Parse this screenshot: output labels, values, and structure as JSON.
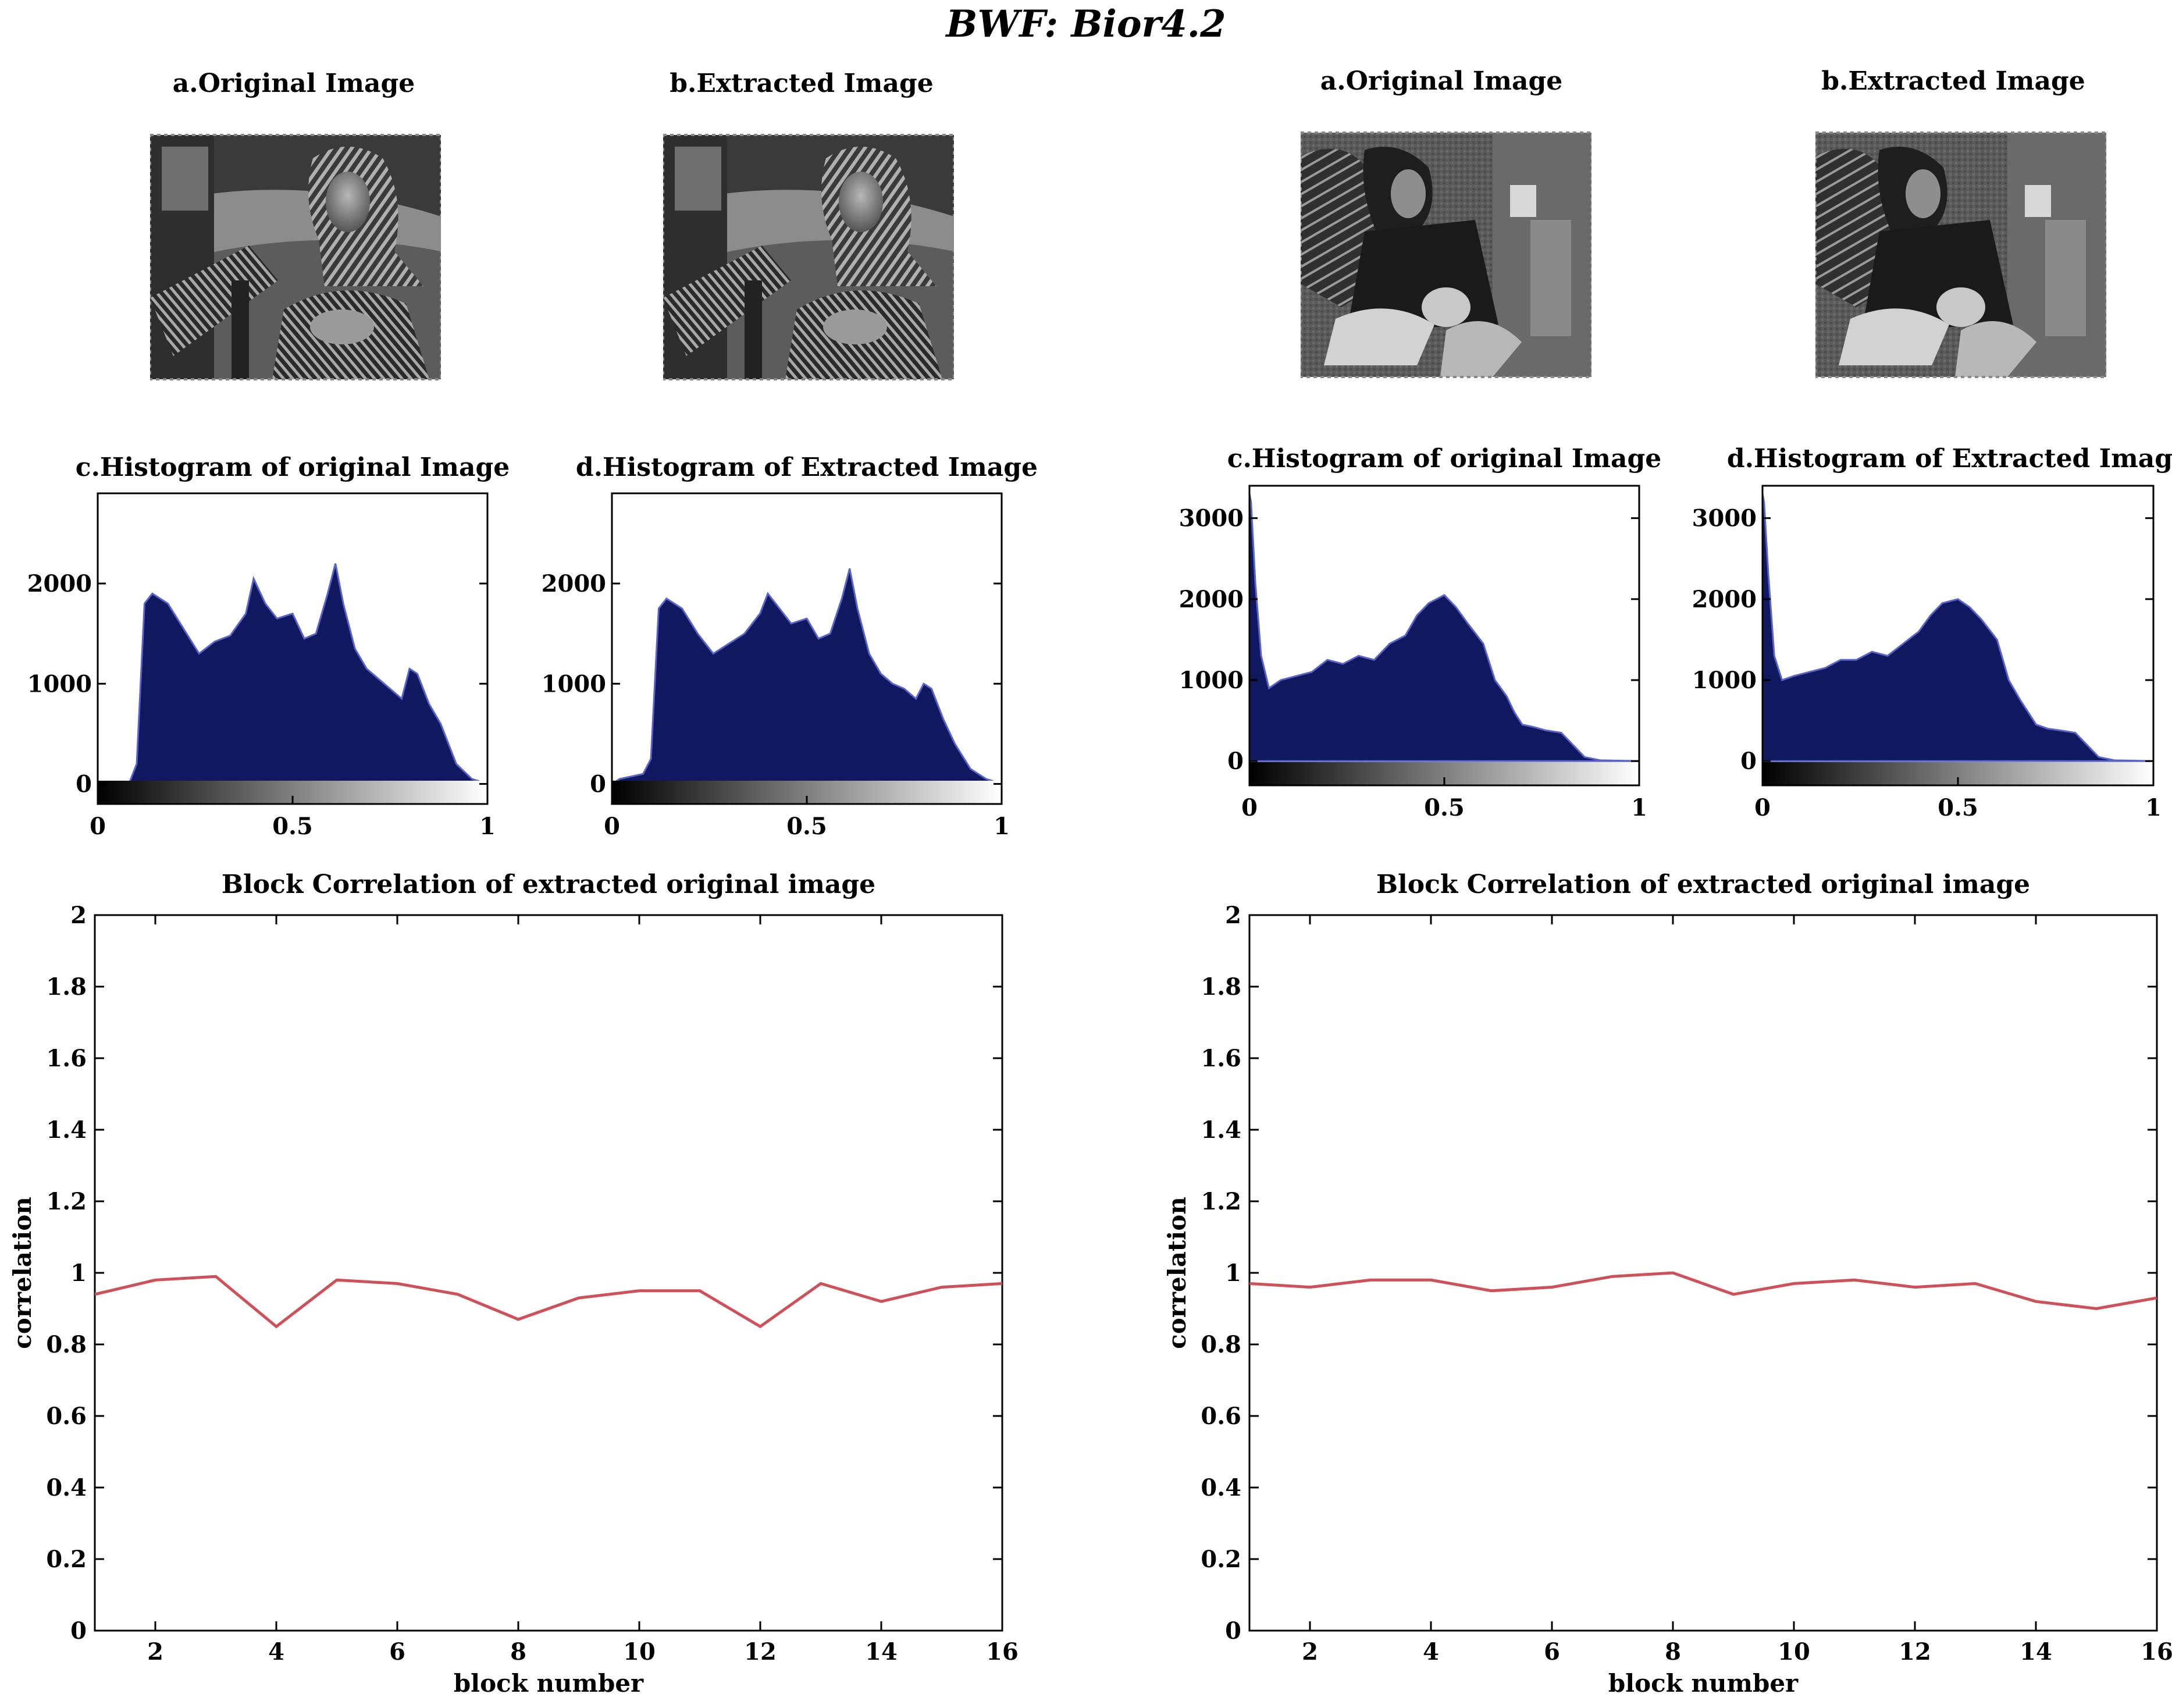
{
  "figure": {
    "title": "BWF: Bior4.2"
  },
  "colors": {
    "histogram_fill": "#101860",
    "histogram_edge": "#5a64c8",
    "correlation_line": "#d0505a",
    "axes": "#000000"
  },
  "panels": [
    {
      "images": [
        {
          "title": "a.Original Image",
          "subject": "woman-with-headscarf"
        },
        {
          "title": "b.Extracted Image",
          "subject": "woman-with-headscarf"
        }
      ]
    },
    {
      "images": [
        {
          "title": "a.Original Image",
          "subject": "man-with-feather-headdress"
        },
        {
          "title": "b.Extracted Image",
          "subject": "man-with-feather-headdress"
        }
      ]
    }
  ],
  "chart_data": [
    {
      "type": "area",
      "panel": 0,
      "role": "histogram",
      "title": "c.Histogram of original Image",
      "xlim": [
        0,
        1
      ],
      "ylim": [
        -200,
        2900
      ],
      "xticks": [
        "0",
        "0.5",
        "1"
      ],
      "yticks": [
        "0",
        "1000",
        "2000"
      ],
      "ytick_values": [
        0,
        1000,
        2000
      ],
      "x": [
        0,
        0.08,
        0.1,
        0.12,
        0.14,
        0.18,
        0.22,
        0.26,
        0.3,
        0.34,
        0.38,
        0.4,
        0.43,
        0.46,
        0.5,
        0.53,
        0.56,
        0.59,
        0.61,
        0.63,
        0.66,
        0.69,
        0.72,
        0.75,
        0.78,
        0.8,
        0.82,
        0.85,
        0.88,
        0.92,
        0.96,
        1.0
      ],
      "values": [
        0,
        0,
        200,
        1800,
        1900,
        1800,
        1550,
        1300,
        1420,
        1480,
        1700,
        2050,
        1800,
        1650,
        1700,
        1450,
        1500,
        1900,
        2200,
        1800,
        1350,
        1150,
        1050,
        950,
        850,
        1150,
        1100,
        800,
        600,
        200,
        50,
        0
      ]
    },
    {
      "type": "area",
      "panel": 0,
      "role": "histogram",
      "title": "d.Histogram of Extracted Image",
      "xlim": [
        0,
        1
      ],
      "ylim": [
        -200,
        2900
      ],
      "xticks": [
        "0",
        "0.5",
        "1"
      ],
      "yticks": [
        "0",
        "1000",
        "2000"
      ],
      "ytick_values": [
        0,
        1000,
        2000
      ],
      "x": [
        0,
        0.02,
        0.08,
        0.1,
        0.12,
        0.14,
        0.18,
        0.22,
        0.26,
        0.3,
        0.34,
        0.38,
        0.4,
        0.43,
        0.46,
        0.5,
        0.53,
        0.56,
        0.59,
        0.61,
        0.63,
        0.66,
        0.69,
        0.72,
        0.75,
        0.78,
        0.8,
        0.82,
        0.85,
        0.88,
        0.92,
        0.96,
        1.0
      ],
      "values": [
        0,
        50,
        100,
        250,
        1750,
        1850,
        1750,
        1500,
        1300,
        1400,
        1500,
        1700,
        1900,
        1750,
        1600,
        1650,
        1450,
        1500,
        1850,
        2150,
        1750,
        1300,
        1100,
        1000,
        950,
        850,
        1000,
        950,
        650,
        400,
        150,
        50,
        0
      ]
    },
    {
      "type": "area",
      "panel": 1,
      "role": "histogram",
      "title": "c.Histogram of original Image",
      "xlim": [
        0,
        1
      ],
      "ylim": [
        -300,
        3400
      ],
      "xticks": [
        "0",
        "0.5",
        "1"
      ],
      "yticks": [
        "0",
        "1000",
        "2000",
        "3000"
      ],
      "ytick_values": [
        0,
        1000,
        2000,
        3000
      ],
      "x": [
        0,
        0.004,
        0.015,
        0.03,
        0.05,
        0.08,
        0.12,
        0.16,
        0.2,
        0.24,
        0.28,
        0.32,
        0.36,
        0.4,
        0.43,
        0.46,
        0.5,
        0.53,
        0.56,
        0.6,
        0.63,
        0.66,
        0.68,
        0.7,
        0.73,
        0.76,
        0.8,
        0.83,
        0.86,
        0.9,
        1.0
      ],
      "values": [
        3300,
        3200,
        2200,
        1300,
        900,
        1000,
        1050,
        1100,
        1250,
        1200,
        1300,
        1250,
        1450,
        1550,
        1800,
        1950,
        2050,
        1900,
        1700,
        1450,
        1000,
        800,
        600,
        450,
        420,
        380,
        350,
        200,
        50,
        10,
        0
      ]
    },
    {
      "type": "area",
      "panel": 1,
      "role": "histogram",
      "title": "d.Histogram of Extracted Image",
      "xlim": [
        0,
        1
      ],
      "ylim": [
        -300,
        3400
      ],
      "xticks": [
        "0",
        "0.5",
        "1"
      ],
      "yticks": [
        "0",
        "1000",
        "2000",
        "3000"
      ],
      "ytick_values": [
        0,
        1000,
        2000,
        3000
      ],
      "x": [
        0,
        0.004,
        0.015,
        0.03,
        0.05,
        0.08,
        0.12,
        0.16,
        0.2,
        0.24,
        0.28,
        0.32,
        0.36,
        0.4,
        0.43,
        0.46,
        0.5,
        0.53,
        0.56,
        0.6,
        0.63,
        0.66,
        0.68,
        0.7,
        0.73,
        0.76,
        0.8,
        0.83,
        0.86,
        0.9,
        1.0
      ],
      "values": [
        3300,
        3200,
        2300,
        1300,
        1000,
        1050,
        1100,
        1150,
        1250,
        1250,
        1350,
        1300,
        1450,
        1600,
        1800,
        1950,
        2000,
        1900,
        1750,
        1500,
        1000,
        750,
        600,
        450,
        400,
        380,
        350,
        200,
        50,
        10,
        0
      ]
    },
    {
      "type": "line",
      "panel": 0,
      "role": "correlation",
      "title": "Block Correlation of extracted original image",
      "xlabel": "block number",
      "ylabel": "correlation",
      "xlim": [
        1,
        16
      ],
      "ylim": [
        0,
        2
      ],
      "xticks": [
        "2",
        "4",
        "6",
        "8",
        "10",
        "12",
        "14",
        "16"
      ],
      "xtick_values": [
        2,
        4,
        6,
        8,
        10,
        12,
        14,
        16
      ],
      "yticks": [
        "0",
        "0.2",
        "0.4",
        "0.6",
        "0.8",
        "1",
        "1.2",
        "1.4",
        "1.6",
        "1.8",
        "2"
      ],
      "ytick_values": [
        0,
        0.2,
        0.4,
        0.6,
        0.8,
        1,
        1.2,
        1.4,
        1.6,
        1.8,
        2
      ],
      "x": [
        1,
        2,
        3,
        4,
        5,
        6,
        7,
        8,
        9,
        10,
        11,
        12,
        13,
        14,
        15,
        16
      ],
      "values": [
        0.94,
        0.98,
        0.99,
        0.85,
        0.98,
        0.97,
        0.94,
        0.87,
        0.93,
        0.95,
        0.95,
        0.85,
        0.97,
        0.92,
        0.96,
        0.97
      ]
    },
    {
      "type": "line",
      "panel": 1,
      "role": "correlation",
      "title": "Block Correlation of extracted original image",
      "xlabel": "block number",
      "ylabel": "correlation",
      "xlim": [
        1,
        16
      ],
      "ylim": [
        0,
        2
      ],
      "xticks": [
        "2",
        "4",
        "6",
        "8",
        "10",
        "12",
        "14",
        "16"
      ],
      "xtick_values": [
        2,
        4,
        6,
        8,
        10,
        12,
        14,
        16
      ],
      "yticks": [
        "0",
        "0.2",
        "0.4",
        "0.6",
        "0.8",
        "1",
        "1.2",
        "1.4",
        "1.6",
        "1.8",
        "2"
      ],
      "ytick_values": [
        0,
        0.2,
        0.4,
        0.6,
        0.8,
        1,
        1.2,
        1.4,
        1.6,
        1.8,
        2
      ],
      "x": [
        1,
        2,
        3,
        4,
        5,
        6,
        7,
        8,
        9,
        10,
        11,
        12,
        13,
        14,
        15,
        16
      ],
      "values": [
        0.97,
        0.96,
        0.98,
        0.98,
        0.95,
        0.96,
        0.99,
        1.0,
        0.94,
        0.97,
        0.98,
        0.96,
        0.97,
        0.92,
        0.9,
        0.93
      ]
    }
  ]
}
